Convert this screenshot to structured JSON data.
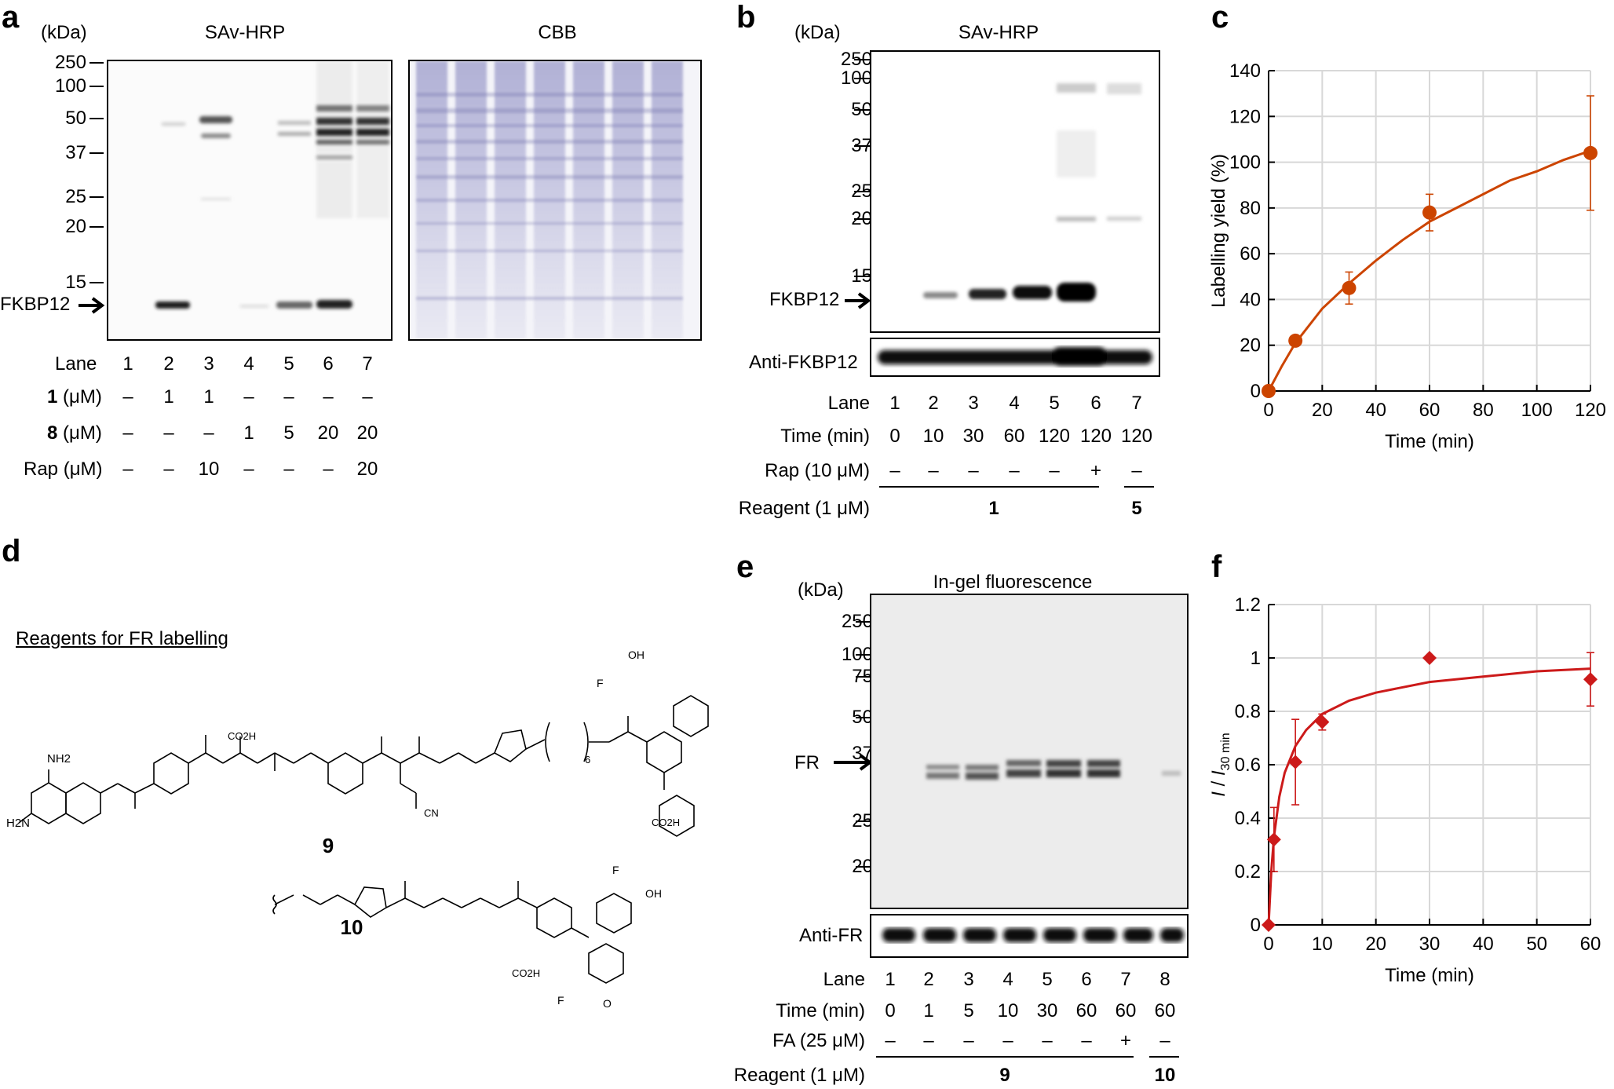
{
  "panel_labels": {
    "a": "a",
    "b": "b",
    "c": "c",
    "d": "d",
    "e": "e",
    "f": "f"
  },
  "panel_a": {
    "kda": "(kDa)",
    "title_left": "SAv-HRP",
    "title_right": "CBB",
    "markers": [
      "250",
      "100",
      "50",
      "37",
      "25",
      "20",
      "15"
    ],
    "protein": "FKBP12",
    "rows": [
      {
        "label": "Lane",
        "values": [
          "1",
          "2",
          "3",
          "4",
          "5",
          "6",
          "7"
        ]
      },
      {
        "label_bold": "1",
        "label_unit": " (μM)",
        "values": [
          "–",
          "1",
          "1",
          "–",
          "–",
          "–",
          "–"
        ]
      },
      {
        "label_bold": "8",
        "label_unit": " (μM)",
        "values": [
          "–",
          "–",
          "–",
          "1",
          "5",
          "20",
          "20"
        ]
      },
      {
        "label": "Rap (μM)",
        "values": [
          "–",
          "–",
          "10",
          "–",
          "–",
          "–",
          "20"
        ]
      }
    ]
  },
  "panel_b": {
    "kda": "(kDa)",
    "title": "SAv-HRP",
    "markers": [
      "250",
      "100",
      "50",
      "37",
      "25",
      "20",
      "15"
    ],
    "protein": "FKBP12",
    "anti": "Anti-FKBP12",
    "rows": [
      {
        "label": "Lane",
        "values": [
          "1",
          "2",
          "3",
          "4",
          "5",
          "6",
          "7"
        ]
      },
      {
        "label": "Time (min)",
        "values": [
          "0",
          "10",
          "30",
          "60",
          "120",
          "120",
          "120"
        ]
      },
      {
        "label": "Rap (10 μM)",
        "values": [
          "–",
          "–",
          "–",
          "–",
          "–",
          "+",
          "–"
        ]
      }
    ],
    "reagent_label": "Reagent (1 μM)",
    "reagent_values": [
      "1",
      "5"
    ]
  },
  "panel_e": {
    "kda": "(kDa)",
    "title": "In-gel fluorescence",
    "markers": [
      "250",
      "100",
      "75",
      "50",
      "37",
      "25",
      "20"
    ],
    "protein": "FR",
    "anti": "Anti-FR",
    "rows": [
      {
        "label": "Lane",
        "values": [
          "1",
          "2",
          "3",
          "4",
          "5",
          "6",
          "7",
          "8"
        ]
      },
      {
        "label": "Time (min)",
        "values": [
          "0",
          "1",
          "5",
          "10",
          "30",
          "60",
          "60",
          "60"
        ]
      },
      {
        "label": "FA (25 μM)",
        "values": [
          "–",
          "–",
          "–",
          "–",
          "–",
          "–",
          "+",
          "–"
        ]
      }
    ],
    "reagent_label": "Reagent (1 μM)",
    "reagent_values": [
      "9",
      "10"
    ]
  },
  "panel_d": {
    "heading": "Reagents for FR labelling",
    "compound_9": "9",
    "compound_10": "10",
    "atoms": {
      "nh2": "NH2",
      "h2n": "H2N",
      "co2h": "CO2H",
      "oh": "OH",
      "f": "F",
      "cn": "CN",
      "n": "N",
      "o": "O",
      "h": "H",
      "six": "6"
    }
  },
  "chart_data": [
    {
      "panel": "c",
      "type": "scatter",
      "xlabel": "Time (min)",
      "ylabel": "Labelling yield (%)",
      "xlim": [
        0,
        120
      ],
      "ylim": [
        0,
        140
      ],
      "xticks": [
        0,
        20,
        40,
        60,
        80,
        100,
        120
      ],
      "yticks": [
        0,
        20,
        40,
        60,
        80,
        100,
        120,
        140
      ],
      "grid": true,
      "color": "#cc4400",
      "marker": "circle",
      "points": [
        {
          "x": 0,
          "y": 0,
          "err": 0
        },
        {
          "x": 10,
          "y": 22,
          "err": 0
        },
        {
          "x": 30,
          "y": 45,
          "err": 7
        },
        {
          "x": 60,
          "y": 78,
          "err": 8
        },
        {
          "x": 120,
          "y": 104,
          "err": 25
        }
      ],
      "fit": [
        [
          0,
          0
        ],
        [
          5,
          11
        ],
        [
          10,
          21
        ],
        [
          20,
          36
        ],
        [
          30,
          47
        ],
        [
          40,
          57
        ],
        [
          50,
          66
        ],
        [
          60,
          74
        ],
        [
          70,
          80
        ],
        [
          80,
          86
        ],
        [
          90,
          92
        ],
        [
          100,
          96
        ],
        [
          110,
          101
        ],
        [
          120,
          105
        ]
      ]
    },
    {
      "panel": "f",
      "type": "scatter",
      "xlabel": "Time (min)",
      "ylabel": "I / I30 min",
      "xlim": [
        0,
        60
      ],
      "ylim": [
        0,
        1.2
      ],
      "xticks": [
        0,
        10,
        20,
        30,
        40,
        50,
        60
      ],
      "yticks": [
        0,
        0.2,
        0.4,
        0.6,
        0.8,
        1,
        1.2
      ],
      "ytick_labels": [
        "0",
        "0.2",
        "0.4",
        "0.6",
        "0.8",
        "1",
        "1.2"
      ],
      "grid": true,
      "color": "#cc1a1a",
      "marker": "diamond",
      "points": [
        {
          "x": 0,
          "y": 0,
          "err": 0
        },
        {
          "x": 1,
          "y": 0.32,
          "err": 0.12
        },
        {
          "x": 5,
          "y": 0.61,
          "err": 0.16
        },
        {
          "x": 10,
          "y": 0.76,
          "err": 0.03
        },
        {
          "x": 30,
          "y": 1.0,
          "err": 0
        },
        {
          "x": 60,
          "y": 0.92,
          "err": 0.1
        }
      ],
      "fit": [
        [
          0,
          0
        ],
        [
          0.5,
          0.2
        ],
        [
          1,
          0.33
        ],
        [
          2,
          0.48
        ],
        [
          3,
          0.57
        ],
        [
          5,
          0.67
        ],
        [
          7,
          0.73
        ],
        [
          10,
          0.79
        ],
        [
          15,
          0.84
        ],
        [
          20,
          0.87
        ],
        [
          30,
          0.91
        ],
        [
          40,
          0.93
        ],
        [
          50,
          0.95
        ],
        [
          60,
          0.96
        ]
      ]
    }
  ]
}
